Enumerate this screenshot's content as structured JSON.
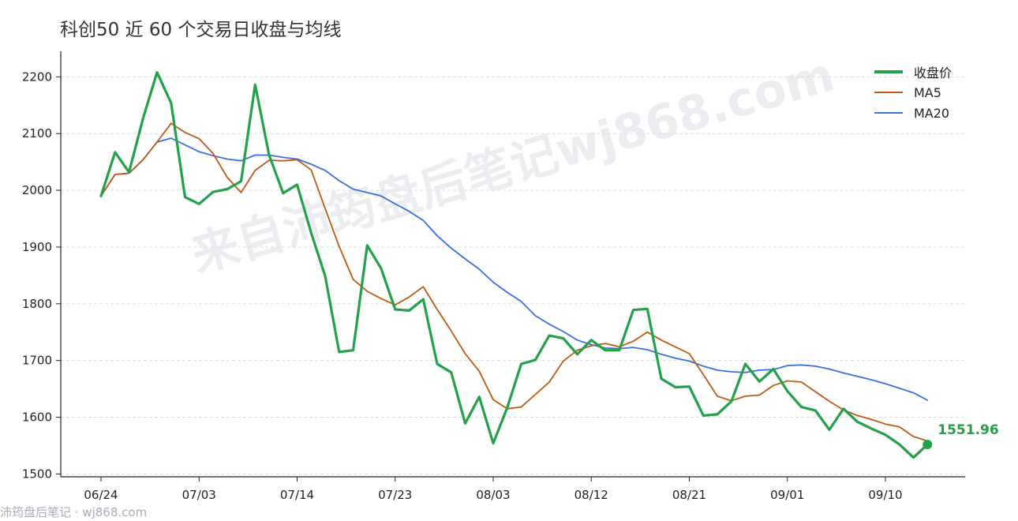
{
  "title": "科创50 近 60 个交易日收盘与均线",
  "footer": "沛筠盘后笔记 · wj868.com",
  "watermark": "来自沛筠盘后笔记wj868.com",
  "colors": {
    "close": "#22a04a",
    "ma5": "#bf5a12",
    "ma20": "#3b6fdc"
  },
  "chart_data": {
    "type": "line",
    "title": "科创50 近 60 个交易日收盘与均线",
    "xlabel": "",
    "ylabel": "",
    "ylim": [
      1495,
      2245
    ],
    "yticks": [
      1500,
      1600,
      1700,
      1800,
      1900,
      2000,
      2100,
      2200
    ],
    "xticks": [
      {
        "index": 0,
        "label": "06/24"
      },
      {
        "index": 7,
        "label": "07/03"
      },
      {
        "index": 14,
        "label": "07/14"
      },
      {
        "index": 21,
        "label": "07/23"
      },
      {
        "index": 28,
        "label": "08/03"
      },
      {
        "index": 35,
        "label": "08/12"
      },
      {
        "index": 42,
        "label": "08/21"
      },
      {
        "index": 49,
        "label": "09/01"
      },
      {
        "index": 56,
        "label": "09/10"
      }
    ],
    "grid": true,
    "legend_position": "top-right",
    "last_value_label": "1551.96",
    "series": [
      {
        "name": "收盘价",
        "values": [
          1990,
          2067,
          2032,
          2127,
          2208,
          2154,
          1988,
          1976,
          1997,
          2002,
          2016,
          2186,
          2062,
          1995,
          2010,
          1925,
          1849,
          1715,
          1718,
          1903,
          1862,
          1790,
          1788,
          1808,
          1694,
          1679,
          1589,
          1636,
          1554,
          1617,
          1694,
          1701,
          1744,
          1739,
          1711,
          1736,
          1718,
          1718,
          1789,
          1791,
          1668,
          1653,
          1654,
          1603,
          1605,
          1628,
          1694,
          1663,
          1685,
          1646,
          1618,
          1612,
          1578,
          1615,
          1592,
          1580,
          1569,
          1552,
          1529,
          1551.96
        ]
      },
      {
        "name": "MA5",
        "values": [
          1990,
          2028,
          2030,
          2054,
          2085,
          2118,
          2102,
          2091,
          2065,
          2023,
          1996,
          2035,
          2053,
          2052,
          2054,
          2036,
          1968,
          1901,
          1843,
          1822,
          1809,
          1798,
          1812,
          1830,
          1790,
          1752,
          1712,
          1681,
          1631,
          1615,
          1618,
          1640,
          1662,
          1699,
          1718,
          1726,
          1730,
          1724,
          1734,
          1750,
          1736,
          1724,
          1712,
          1675,
          1637,
          1629,
          1637,
          1639,
          1656,
          1664,
          1662,
          1645,
          1628,
          1613,
          1603,
          1596,
          1588,
          1583,
          1566,
          1558
        ]
      },
      {
        "name": "MA20",
        "values": [
          1990,
          2028,
          2030,
          2054,
          2085,
          2092,
          2080,
          2068,
          2061,
          2055,
          2052,
          2062,
          2062,
          2058,
          2055,
          2046,
          2035,
          2017,
          2002,
          1996,
          1990,
          1976,
          1963,
          1947,
          1920,
          1898,
          1879,
          1861,
          1838,
          1820,
          1804,
          1779,
          1764,
          1751,
          1736,
          1728,
          1722,
          1721,
          1723,
          1719,
          1711,
          1704,
          1699,
          1690,
          1683,
          1680,
          1679,
          1683,
          1684,
          1691,
          1692,
          1690,
          1685,
          1678,
          1672,
          1666,
          1659,
          1651,
          1643,
          1630
        ]
      }
    ]
  }
}
